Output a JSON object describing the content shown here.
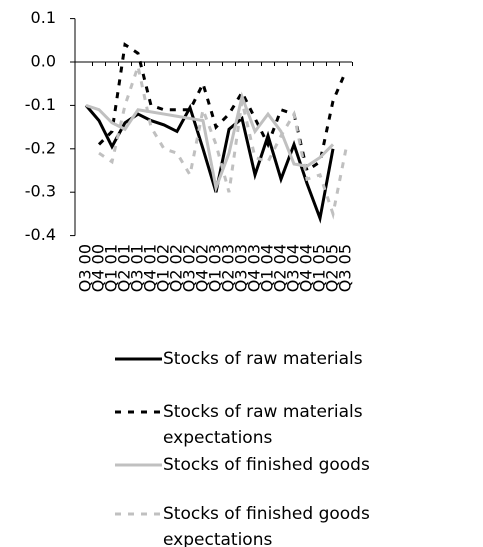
{
  "chart_data": {
    "type": "line",
    "categories": [
      "Q3 00",
      "Q4 00",
      "Q1 01",
      "Q2 01",
      "Q3 01",
      "Q4 01",
      "Q1 02",
      "Q2 02",
      "Q3 02",
      "Q4 02",
      "Q1 03",
      "Q2 03",
      "Q3 03",
      "Q4 03",
      "Q1 04",
      "Q2 04",
      "Q3 04",
      "Q4 04",
      "Q1 05",
      "Q2 05",
      "Q3 05"
    ],
    "ylim": [
      -0.4,
      0.1
    ],
    "yticks": [
      0.1,
      {
        "value": 0,
        "label": "0.0"
      },
      -0.1,
      -0.2,
      -0.3,
      -0.4
    ],
    "series": [
      {
        "name": "Stocks of raw materials",
        "color": "#000000",
        "style": "solid",
        "values": [
          -0.1,
          -0.135,
          -0.195,
          -0.14,
          -0.12,
          -0.135,
          -0.145,
          -0.16,
          -0.105,
          -0.2,
          -0.3,
          -0.155,
          -0.13,
          -0.26,
          -0.17,
          -0.27,
          -0.19,
          -0.28,
          -0.36,
          -0.2,
          null
        ]
      },
      {
        "name": "Stocks of raw materials expectations",
        "color": "#000000",
        "style": "dashed",
        "values": [
          null,
          -0.19,
          -0.16,
          0.04,
          0.02,
          -0.1,
          -0.11,
          -0.11,
          -0.11,
          -0.05,
          -0.15,
          -0.12,
          -0.07,
          -0.13,
          -0.19,
          -0.11,
          -0.12,
          -0.25,
          -0.23,
          -0.09,
          -0.02
        ]
      },
      {
        "name": "Stocks of finished goods",
        "color": "#c0c0c0",
        "style": "solid",
        "values": [
          -0.1,
          -0.11,
          -0.14,
          -0.155,
          -0.11,
          -0.115,
          -0.12,
          -0.125,
          -0.13,
          -0.135,
          -0.29,
          -0.21,
          -0.08,
          -0.16,
          -0.12,
          -0.16,
          -0.235,
          -0.24,
          -0.22,
          -0.19,
          null
        ]
      },
      {
        "name": "Stocks of finished goods expectations",
        "color": "#c0c0c0",
        "style": "dashed",
        "values": [
          null,
          -0.21,
          -0.23,
          -0.1,
          -0.01,
          -0.15,
          -0.2,
          -0.21,
          -0.26,
          -0.11,
          -0.19,
          -0.3,
          -0.09,
          -0.22,
          -0.23,
          -0.17,
          -0.12,
          -0.27,
          -0.26,
          -0.35,
          -0.2
        ]
      }
    ]
  }
}
